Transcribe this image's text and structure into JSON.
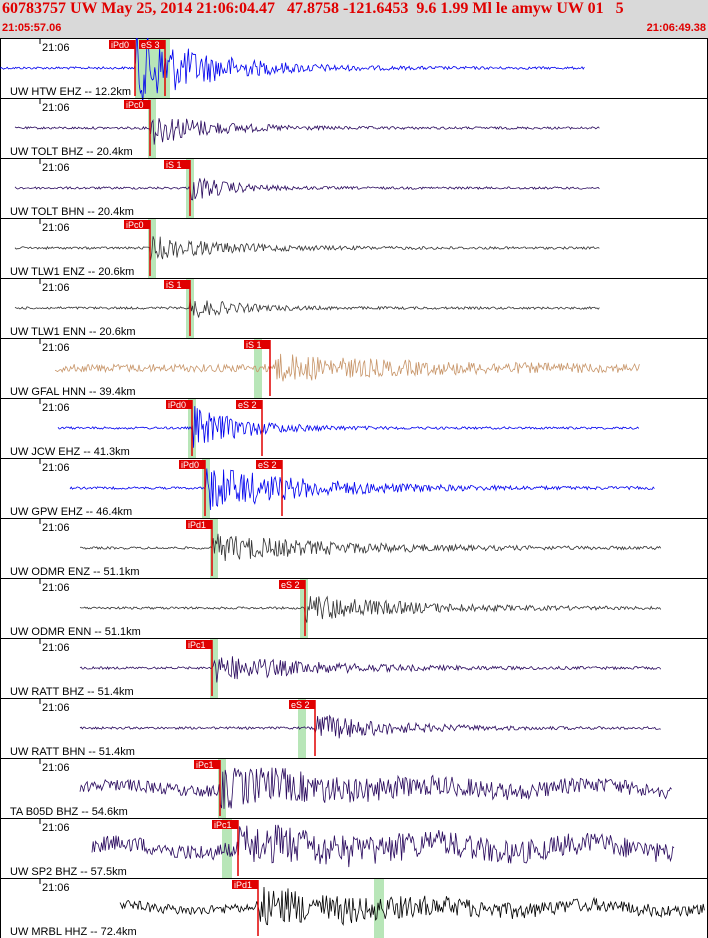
{
  "header": {
    "title": "60783757 UW May 25, 2014 21:06:04.47   47.8758 -121.6453  9.6 1.99 Ml le amyw UW 01   5",
    "start_time": "21:05:57.06",
    "end_time": "21:06:49.38"
  },
  "colors": {
    "pick": "#e00000",
    "window": "#b8e6b8",
    "blue": "#0000ee",
    "navy": "#2a0a5e",
    "gray": "#333333",
    "tan": "#c8966a",
    "black": "#000000",
    "border": "#000000"
  },
  "traces": [
    {
      "label": "UW HTW EHZ -- 12.2km",
      "time": "21:06",
      "color": "blue",
      "picks": [
        "iPd0",
        "eS 3"
      ]
    },
    {
      "label": "UW TOLT BHZ -- 20.4km",
      "time": "21:06",
      "color": "navy",
      "picks": [
        "iPc0"
      ]
    },
    {
      "label": "UW TOLT BHN -- 20.4km",
      "time": "21:06",
      "color": "navy",
      "picks": [
        "iS 1"
      ]
    },
    {
      "label": "UW TLW1 ENZ -- 20.6km",
      "time": "21:06",
      "color": "gray",
      "picks": [
        "iPc0"
      ]
    },
    {
      "label": "UW TLW1 ENN -- 20.6km",
      "time": "21:06",
      "color": "gray",
      "picks": [
        "iS 1"
      ]
    },
    {
      "label": "UW GFAL HNN -- 39.4km",
      "time": "21:06",
      "color": "tan",
      "picks": [
        "iS 1"
      ]
    },
    {
      "label": "UW JCW EHZ -- 41.3km",
      "time": "21:06",
      "color": "blue",
      "picks": [
        "iPd0",
        "eS 2"
      ]
    },
    {
      "label": "UW GPW EHZ -- 46.4km",
      "time": "21:06",
      "color": "blue",
      "picks": [
        "iPd0",
        "eS 2"
      ]
    },
    {
      "label": "UW ODMR ENZ -- 51.1km",
      "time": "21:06",
      "color": "gray",
      "picks": [
        "iPd1"
      ]
    },
    {
      "label": "UW ODMR ENN -- 51.1km",
      "time": "21:06",
      "color": "gray",
      "picks": [
        "eS 2"
      ]
    },
    {
      "label": "UW RATT BHZ -- 51.4km",
      "time": "21:06",
      "color": "navy",
      "picks": [
        "iPc1"
      ]
    },
    {
      "label": "UW RATT BHN -- 51.4km",
      "time": "21:06",
      "color": "navy",
      "picks": [
        "eS 2"
      ]
    },
    {
      "label": "TA B05D BHZ -- 54.6km",
      "time": "21:06",
      "color": "navy",
      "picks": [
        "iPc1"
      ]
    },
    {
      "label": "UW SP2 BHZ -- 57.5km",
      "time": "21:06",
      "color": "navy",
      "picks": [
        "iPc1"
      ]
    },
    {
      "label": "UW MRBL HHZ -- 72.4km",
      "time": "21:06",
      "color": "black",
      "picks": [
        "iPd1"
      ]
    }
  ]
}
